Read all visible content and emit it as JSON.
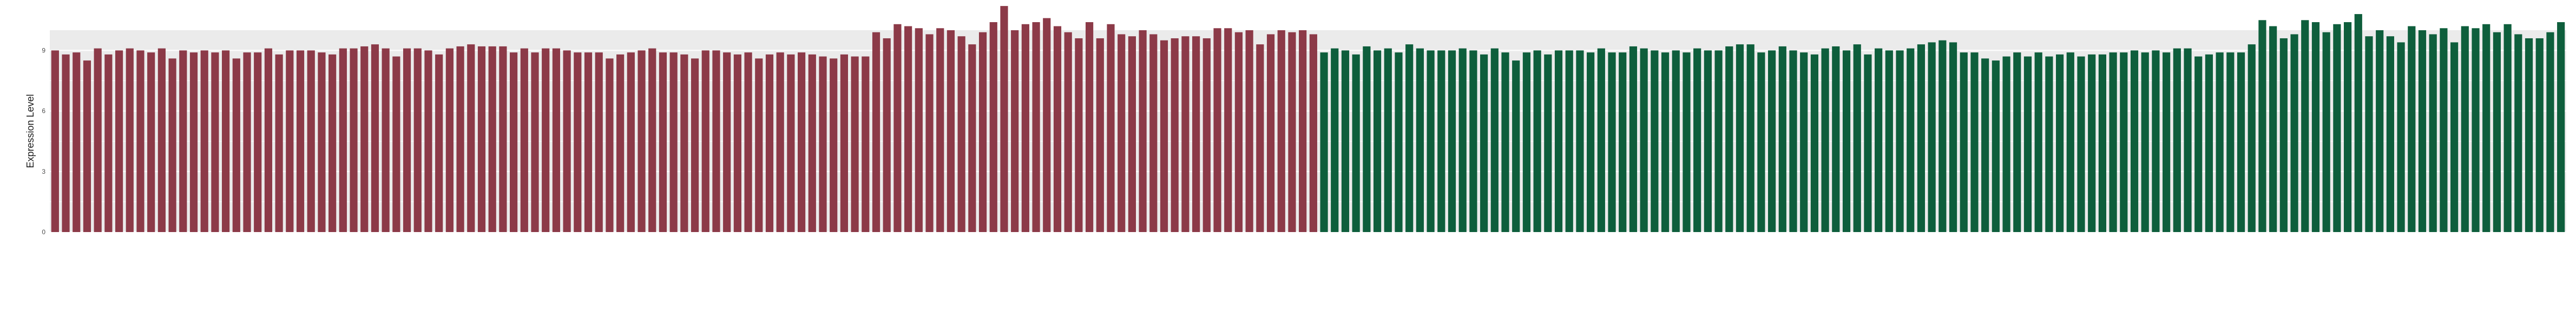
{
  "chart_data": {
    "type": "bar",
    "title": "",
    "xlabel": "",
    "ylabel": "Expression Level",
    "ylim": [
      0,
      10
    ],
    "y_ticks": [
      0,
      3,
      6,
      9
    ],
    "grid": true,
    "legend": "none",
    "colors": {
      "background": "#ffffff",
      "panel": "#ebebeb",
      "grid": "#ffffff",
      "series_1": "#8c3a48",
      "series_2": "#0e5e3c"
    },
    "series": [
      {
        "color": "#8c3a48",
        "values": [
          9.0,
          8.8,
          8.9,
          8.5,
          9.1,
          8.8,
          9.0,
          9.1,
          9.0,
          8.9,
          9.1,
          8.6,
          9.0,
          8.9,
          9.0,
          8.9,
          9.0,
          8.6,
          8.9,
          8.9,
          9.1,
          8.8,
          9.0,
          9.0,
          9.0,
          8.9,
          8.8,
          9.1,
          9.1,
          9.2,
          9.3,
          9.1,
          8.7,
          9.1,
          9.1,
          9.0,
          8.8,
          9.1,
          9.2,
          9.3,
          9.2,
          9.2,
          9.2,
          8.9,
          9.1,
          8.9,
          9.1,
          9.1,
          9.0,
          8.9,
          8.9,
          8.9,
          8.6,
          8.8,
          8.9,
          9.0,
          9.1,
          8.9,
          8.9,
          8.8,
          8.6,
          9.0,
          9.0,
          8.9,
          8.8,
          8.9,
          8.6,
          8.8,
          8.9,
          8.8,
          8.9,
          8.8,
          8.7,
          8.6,
          8.8,
          8.7,
          8.7,
          9.9,
          9.6,
          10.3,
          10.2,
          10.1,
          9.8,
          10.1,
          10.0,
          9.7,
          9.3,
          9.9,
          10.4,
          11.2,
          10.0,
          10.3,
          10.4,
          10.6,
          10.2,
          9.9,
          9.6,
          10.4,
          9.6,
          10.3,
          9.8,
          9.7,
          10.0,
          9.8,
          9.5,
          9.6,
          9.7,
          9.7,
          9.6,
          10.1,
          10.1,
          9.9,
          10.0,
          9.3,
          9.8,
          10.0,
          9.9,
          10.0,
          9.8
        ]
      },
      {
        "color": "#0e5e3c",
        "values": [
          8.9,
          9.1,
          9.0,
          8.8,
          9.2,
          9.0,
          9.1,
          8.9,
          9.3,
          9.1,
          9.0,
          9.0,
          9.0,
          9.1,
          9.0,
          8.8,
          9.1,
          8.9,
          8.5,
          8.9,
          9.0,
          8.8,
          9.0,
          9.0,
          9.0,
          8.9,
          9.1,
          8.9,
          8.9,
          9.2,
          9.1,
          9.0,
          8.9,
          9.0,
          8.9,
          9.1,
          9.0,
          9.0,
          9.2,
          9.3,
          9.3,
          8.9,
          9.0,
          9.2,
          9.0,
          8.9,
          8.8,
          9.1,
          9.2,
          9.0,
          9.3,
          8.8,
          9.1,
          9.0,
          9.0,
          9.1,
          9.3,
          9.4,
          9.5,
          9.4,
          8.9,
          8.9,
          8.6,
          8.5,
          8.7,
          8.9,
          8.7,
          8.9,
          8.7,
          8.8,
          8.9,
          8.7,
          8.8,
          8.8,
          8.9,
          8.9,
          9.0,
          8.9,
          9.0,
          8.9,
          9.1,
          9.1,
          8.7,
          8.8,
          8.9,
          8.9,
          8.9,
          9.3,
          10.5,
          10.2,
          9.6,
          9.8,
          10.5,
          10.4,
          9.9,
          10.3,
          10.4,
          10.8,
          9.7,
          10.0,
          9.7,
          9.4,
          10.2,
          10.0,
          9.8,
          10.1,
          9.4,
          10.2,
          10.1,
          10.3,
          9.9,
          10.3,
          9.8,
          9.6,
          9.6,
          9.9,
          10.4
        ]
      }
    ]
  }
}
